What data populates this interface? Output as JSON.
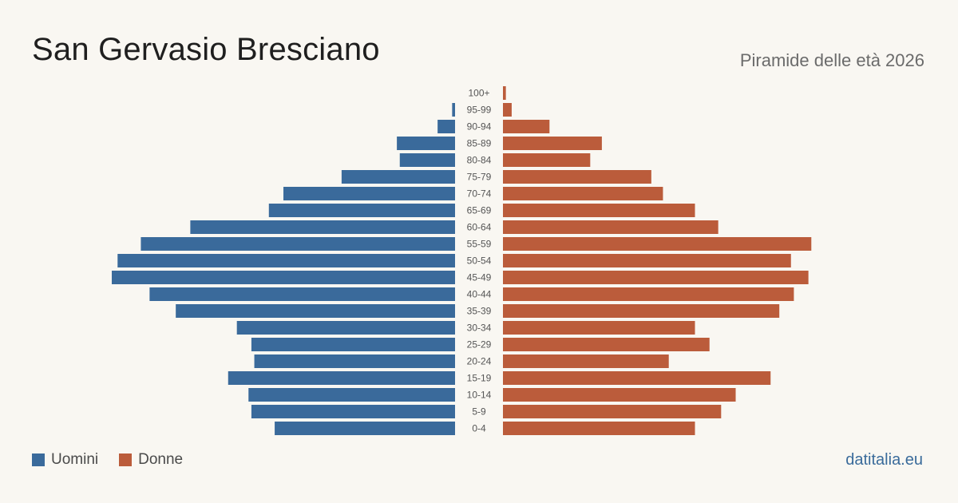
{
  "header": {
    "title": "San Gervasio Bresciano",
    "subtitle": "Piramide delle età 2026"
  },
  "legend": {
    "male_label": "Uomini",
    "female_label": "Donne"
  },
  "source": "datitalia.eu",
  "colors": {
    "male": "#3a6a9b",
    "female": "#bb5c3b",
    "background": "#f9f7f2"
  },
  "chart_data": {
    "type": "bar",
    "orientation": "horizontal-population-pyramid",
    "categories": [
      "100+",
      "95-99",
      "90-94",
      "85-89",
      "80-84",
      "75-79",
      "70-74",
      "65-69",
      "60-64",
      "55-59",
      "50-54",
      "45-49",
      "40-44",
      "35-39",
      "30-34",
      "25-29",
      "20-24",
      "15-19",
      "10-14",
      "5-9",
      "0-4"
    ],
    "series": [
      {
        "name": "Uomini",
        "values": [
          0,
          1,
          6,
          20,
          19,
          39,
          59,
          64,
          91,
          108,
          116,
          118,
          105,
          96,
          75,
          70,
          69,
          78,
          71,
          70,
          62
        ]
      },
      {
        "name": "Donne",
        "values": [
          1,
          3,
          16,
          34,
          30,
          51,
          55,
          66,
          74,
          106,
          99,
          105,
          100,
          95,
          66,
          71,
          57,
          92,
          80,
          75,
          66
        ]
      }
    ],
    "grid": false,
    "legend_position": "bottom-left"
  }
}
